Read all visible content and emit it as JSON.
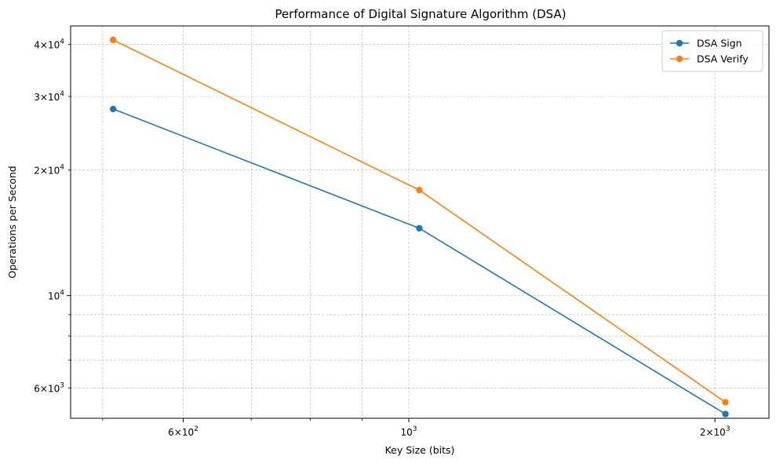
{
  "chart_data": {
    "type": "line",
    "title": "Performance of Digital Signature Algorithm (DSA)",
    "xlabel": "Key Size (bits)",
    "ylabel": "Operations per Second",
    "x_scale": "log",
    "y_scale": "log",
    "x": [
      512,
      1024,
      2048
    ],
    "xlim": [
      465,
      2260
    ],
    "ylim": [
      5080,
      44300
    ],
    "series": [
      {
        "name": "DSA Sign",
        "color": "#1f77b4",
        "values": [
          28000,
          14500,
          5200
        ]
      },
      {
        "name": "DSA Verify",
        "color": "#ff7f0e",
        "values": [
          41000,
          17900,
          5550
        ]
      }
    ],
    "x_ticks": {
      "major": [
        {
          "value": 600,
          "base": "6",
          "exp": "2",
          "prefix": "6×10"
        },
        {
          "value": 1000,
          "base": "",
          "exp": "3",
          "prefix": "10"
        },
        {
          "value": 2000,
          "base": "2",
          "exp": "3",
          "prefix": "2×10"
        }
      ],
      "minor": [
        500,
        700,
        800,
        900
      ]
    },
    "y_ticks": {
      "major": [
        {
          "value": 10000,
          "exp": "4",
          "prefix": "10"
        }
      ],
      "minor_labeled": [
        {
          "value": 6000,
          "exp": "3",
          "prefix": "6×10"
        },
        {
          "value": 20000,
          "exp": "4",
          "prefix": "2×10"
        },
        {
          "value": 30000,
          "exp": "4",
          "prefix": "3×10"
        },
        {
          "value": 40000,
          "exp": "4",
          "prefix": "4×10"
        }
      ],
      "minor": [
        7000,
        8000,
        9000
      ]
    },
    "grid": true,
    "legend_position": "top-right"
  }
}
